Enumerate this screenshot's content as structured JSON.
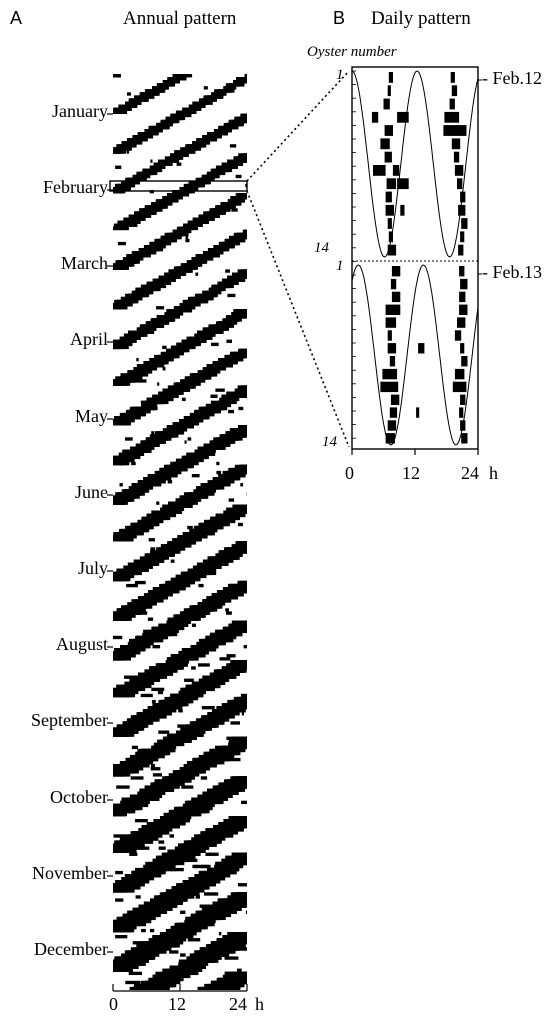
{
  "panel_a": {
    "letter": "A",
    "title": "Annual pattern"
  },
  "panel_b": {
    "letter": "B",
    "title": "Daily pattern",
    "y_axis_title": "Oyster number"
  },
  "chart_data": [
    {
      "type": "heatmap",
      "title": "Annual pattern",
      "xlabel": "",
      "x_unit": "h",
      "x_ticks": [
        "0",
        "12",
        "24"
      ],
      "xlim": [
        0,
        24
      ],
      "y_categories": [
        "January",
        "February",
        "March",
        "April",
        "May",
        "June",
        "July",
        "August",
        "September",
        "October",
        "November",
        "December"
      ],
      "highlight": {
        "month": "February",
        "label": "February"
      },
      "colors": {
        "activity": "#000000",
        "rest": "#ffffff"
      }
    },
    {
      "type": "bar",
      "title": "Daily pattern",
      "ylabel": "Oyster number",
      "x_ticks": [
        "0",
        "12",
        "24"
      ],
      "x_unit": "h",
      "xlim": [
        0,
        24
      ],
      "y_tick_labels": {
        "top_first": "1",
        "top_last": "14",
        "bottom_first": "1",
        "bottom_last": "14"
      },
      "day_labels": [
        "- Feb.12",
        "- Feb.13"
      ],
      "days": [
        {
          "label": "Feb.12",
          "oysters": [
            [
              [
                7.0,
                7.8
              ],
              [
                18.8,
                19.6
              ]
            ],
            [
              [
                6.8,
                7.4
              ],
              [
                19.0,
                20.0
              ]
            ],
            [
              [
                6.0,
                7.2
              ],
              [
                18.6,
                19.6
              ]
            ],
            [
              [
                3.8,
                5.0
              ],
              [
                8.6,
                10.8
              ],
              [
                17.6,
                20.4
              ]
            ],
            [
              [
                6.2,
                7.8
              ],
              [
                17.4,
                21.8
              ]
            ],
            [
              [
                5.4,
                7.2
              ],
              [
                19.0,
                20.6
              ]
            ],
            [
              [
                6.2,
                7.6
              ],
              [
                19.4,
                20.4
              ]
            ],
            [
              [
                4.0,
                6.4
              ],
              [
                7.8,
                9.0
              ],
              [
                19.6,
                21.2
              ]
            ],
            [
              [
                6.6,
                8.4
              ],
              [
                8.6,
                10.8
              ],
              [
                20.0,
                21.0
              ]
            ],
            [
              [
                6.4,
                7.6
              ],
              [
                20.6,
                21.6
              ]
            ],
            [
              [
                6.4,
                8.0
              ],
              [
                9.2,
                10.0
              ],
              [
                20.2,
                21.6
              ]
            ],
            [
              [
                6.8,
                7.6
              ],
              [
                20.8,
                22.0
              ]
            ],
            [
              [
                7.0,
                7.8
              ],
              [
                20.6,
                21.4
              ]
            ],
            [
              [
                6.8,
                8.4
              ],
              [
                20.2,
                21.2
              ]
            ]
          ],
          "curve": "cosine",
          "curve_period_h": 12.4
        },
        {
          "label": "Feb.13",
          "oysters": [
            [
              [
                7.6,
                9.2
              ],
              [
                20.4,
                21.4
              ]
            ],
            [
              [
                7.4,
                8.4
              ],
              [
                20.6,
                22.0
              ]
            ],
            [
              [
                7.6,
                9.2
              ],
              [
                20.4,
                21.6
              ]
            ],
            [
              [
                6.4,
                9.2
              ],
              [
                20.4,
                22.0
              ]
            ],
            [
              [
                6.4,
                8.4
              ],
              [
                20.0,
                21.6
              ]
            ],
            [
              [
                6.8,
                7.6
              ],
              [
                19.6,
                20.8
              ]
            ],
            [
              [
                6.8,
                8.4
              ],
              [
                12.6,
                13.8
              ],
              [
                20.6,
                21.4
              ]
            ],
            [
              [
                7.2,
                8.2
              ],
              [
                20.8,
                22.0
              ]
            ],
            [
              [
                5.8,
                8.6
              ],
              [
                19.6,
                21.4
              ]
            ],
            [
              [
                5.4,
                8.8
              ],
              [
                19.2,
                21.8
              ]
            ],
            [
              [
                7.4,
                9.0
              ],
              [
                20.6,
                21.6
              ]
            ],
            [
              [
                7.2,
                8.6
              ],
              [
                12.2,
                12.8
              ],
              [
                20.4,
                21.2
              ]
            ],
            [
              [
                6.8,
                8.4
              ],
              [
                20.6,
                21.6
              ]
            ],
            [
              [
                6.4,
                8.2
              ],
              [
                20.8,
                22.0
              ]
            ]
          ],
          "curve": "cosine",
          "curve_period_h": 12.4
        }
      ]
    }
  ]
}
